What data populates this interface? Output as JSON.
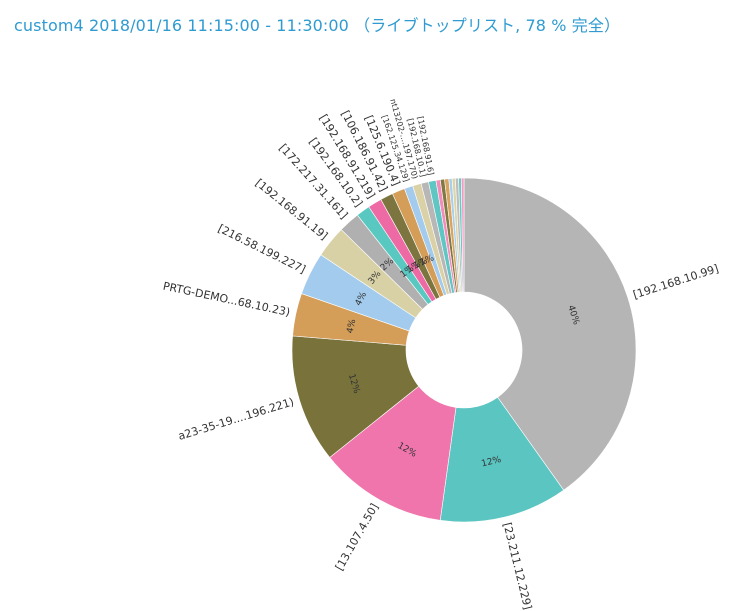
{
  "header": {
    "title": "custom4 2018/01/16 11:15:00 - 11:30:00 （ライブトップリスト, 78 % 完全）"
  },
  "chart_data": {
    "type": "pie",
    "donut": true,
    "title": "custom4 2018/01/16 11:15:00 - 11:30:00 （ライブトップリスト, 78 % 完全）",
    "slices": [
      {
        "label": "[192.168.10.99]",
        "value": 40,
        "pct_label": "40%",
        "color": "#b5b5b5"
      },
      {
        "label": "[23.211.12.229]",
        "value": 12,
        "pct_label": "12%",
        "color": "#5bc5c1"
      },
      {
        "label": "[13.107.4.50]",
        "value": 12,
        "pct_label": "12%",
        "color": "#f075ac"
      },
      {
        "label": "a23-35-19....196.221)",
        "value": 12,
        "pct_label": "12%",
        "color": "#79733b"
      },
      {
        "label": "PRTG-DEMO...68.10.23)",
        "value": 4,
        "pct_label": "4%",
        "color": "#d49d58"
      },
      {
        "label": "[216.58.199.227]",
        "value": 4,
        "pct_label": "4%",
        "color": "#a2cbed"
      },
      {
        "label": "[192.168.91.19]",
        "value": 3,
        "pct_label": "3%",
        "color": "#d9d1a6"
      },
      {
        "label": "[172.217.31.161]",
        "value": 2,
        "pct_label": "2%",
        "color": "#b0b0b0"
      },
      {
        "label": "[192.168.10.2]",
        "value": 1.3,
        "pct_label": "1%",
        "color": "#58c8c0"
      },
      {
        "label": "[192.168.91.219]",
        "value": 1.3,
        "pct_label": "1%",
        "color": "#ee6aa5"
      },
      {
        "label": "[106.186.91.42]",
        "value": 1.2,
        "pct_label": "1%",
        "color": "#7c7540"
      },
      {
        "label": "[125.6.190.4]",
        "value": 1.2,
        "pct_label": "1%",
        "color": "#d49d58"
      },
      {
        "label": "[162.125.34.129]",
        "value": 0.8,
        "pct_label": "",
        "color": "#a3cbee"
      },
      {
        "label": "nt13202-....197.170)",
        "value": 0.8,
        "pct_label": "",
        "color": "#dad2a6"
      },
      {
        "label": "[192.168.10.1]",
        "value": 0.7,
        "pct_label": "",
        "color": "#b7b7b7"
      },
      {
        "label": "[192.168.91.6]",
        "value": 0.7,
        "pct_label": "",
        "color": "#5fc6c4"
      },
      {
        "label": "",
        "value": 0.4,
        "pct_label": "",
        "color": "#f48cba"
      },
      {
        "label": "",
        "value": 0.4,
        "pct_label": "",
        "color": "#807944"
      },
      {
        "label": "",
        "value": 0.4,
        "pct_label": "",
        "color": "#d9a460"
      },
      {
        "label": "",
        "value": 0.3,
        "pct_label": "",
        "color": "#a8cfee"
      },
      {
        "label": "",
        "value": 0.3,
        "pct_label": "",
        "color": "#dcd5aa"
      },
      {
        "label": "",
        "value": 0.3,
        "pct_label": "",
        "color": "#bdbdbd"
      },
      {
        "label": "",
        "value": 0.25,
        "pct_label": "",
        "color": "#66c9c4"
      },
      {
        "label": "",
        "value": 0.25,
        "pct_label": "",
        "color": "#f19cc2"
      }
    ]
  }
}
